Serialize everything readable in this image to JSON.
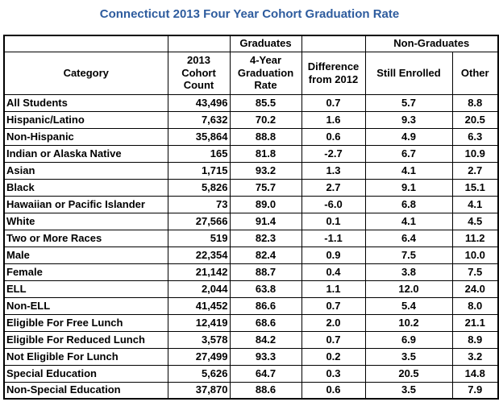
{
  "chart_data": {
    "type": "table",
    "title": "Connecticut 2013 Four Year Cohort Graduation Rate",
    "title_color": "#2E5C9E",
    "border_color": "#000000",
    "background_color": "#FFFFFF",
    "group_headers": {
      "graduates": {
        "label": "Graduates",
        "columns": [
          2
        ]
      },
      "non_graduates": {
        "label": "Non-Graduates",
        "columns": [
          4,
          5
        ]
      }
    },
    "columns": [
      "Category",
      "2013 Cohort Count",
      "4-Year Graduation Rate",
      "Difference from 2012",
      "Still Enrolled",
      "Other"
    ],
    "rows": [
      [
        "All Students",
        "43,496",
        "85.5",
        "0.7",
        "5.7",
        "8.8"
      ],
      [
        "Hispanic/Latino",
        "7,632",
        "70.2",
        "1.6",
        "9.3",
        "20.5"
      ],
      [
        "Non-Hispanic",
        "35,864",
        "88.8",
        "0.6",
        "4.9",
        "6.3"
      ],
      [
        "Indian or Alaska Native",
        "165",
        "81.8",
        "-2.7",
        "6.7",
        "10.9"
      ],
      [
        "Asian",
        "1,715",
        "93.2",
        "1.3",
        "4.1",
        "2.7"
      ],
      [
        "Black",
        "5,826",
        "75.7",
        "2.7",
        "9.1",
        "15.1"
      ],
      [
        "Hawaiian or Pacific Islander",
        "73",
        "89.0",
        "-6.0",
        "6.8",
        "4.1"
      ],
      [
        "White",
        "27,566",
        "91.4",
        "0.1",
        "4.1",
        "4.5"
      ],
      [
        "Two or More Races",
        "519",
        "82.3",
        "-1.1",
        "6.4",
        "11.2"
      ],
      [
        "Male",
        "22,354",
        "82.4",
        "0.9",
        "7.5",
        "10.0"
      ],
      [
        "Female",
        "21,142",
        "88.7",
        "0.4",
        "3.8",
        "7.5"
      ],
      [
        "ELL",
        "2,044",
        "63.8",
        "1.1",
        "12.0",
        "24.0"
      ],
      [
        "Non-ELL",
        "41,452",
        "86.6",
        "0.7",
        "5.4",
        "8.0"
      ],
      [
        "Eligible For Free Lunch",
        "12,419",
        "68.6",
        "2.0",
        "10.2",
        "21.1"
      ],
      [
        "Eligible For Reduced Lunch",
        "3,578",
        "84.2",
        "0.7",
        "6.9",
        "8.9"
      ],
      [
        "Not Eligible For Lunch",
        "27,499",
        "93.3",
        "0.2",
        "3.5",
        "3.2"
      ],
      [
        "Special Education",
        "5,626",
        "64.7",
        "0.3",
        "20.5",
        "14.8"
      ],
      [
        "Non-Special Education",
        "37,870",
        "88.6",
        "0.6",
        "3.5",
        "7.9"
      ]
    ]
  }
}
